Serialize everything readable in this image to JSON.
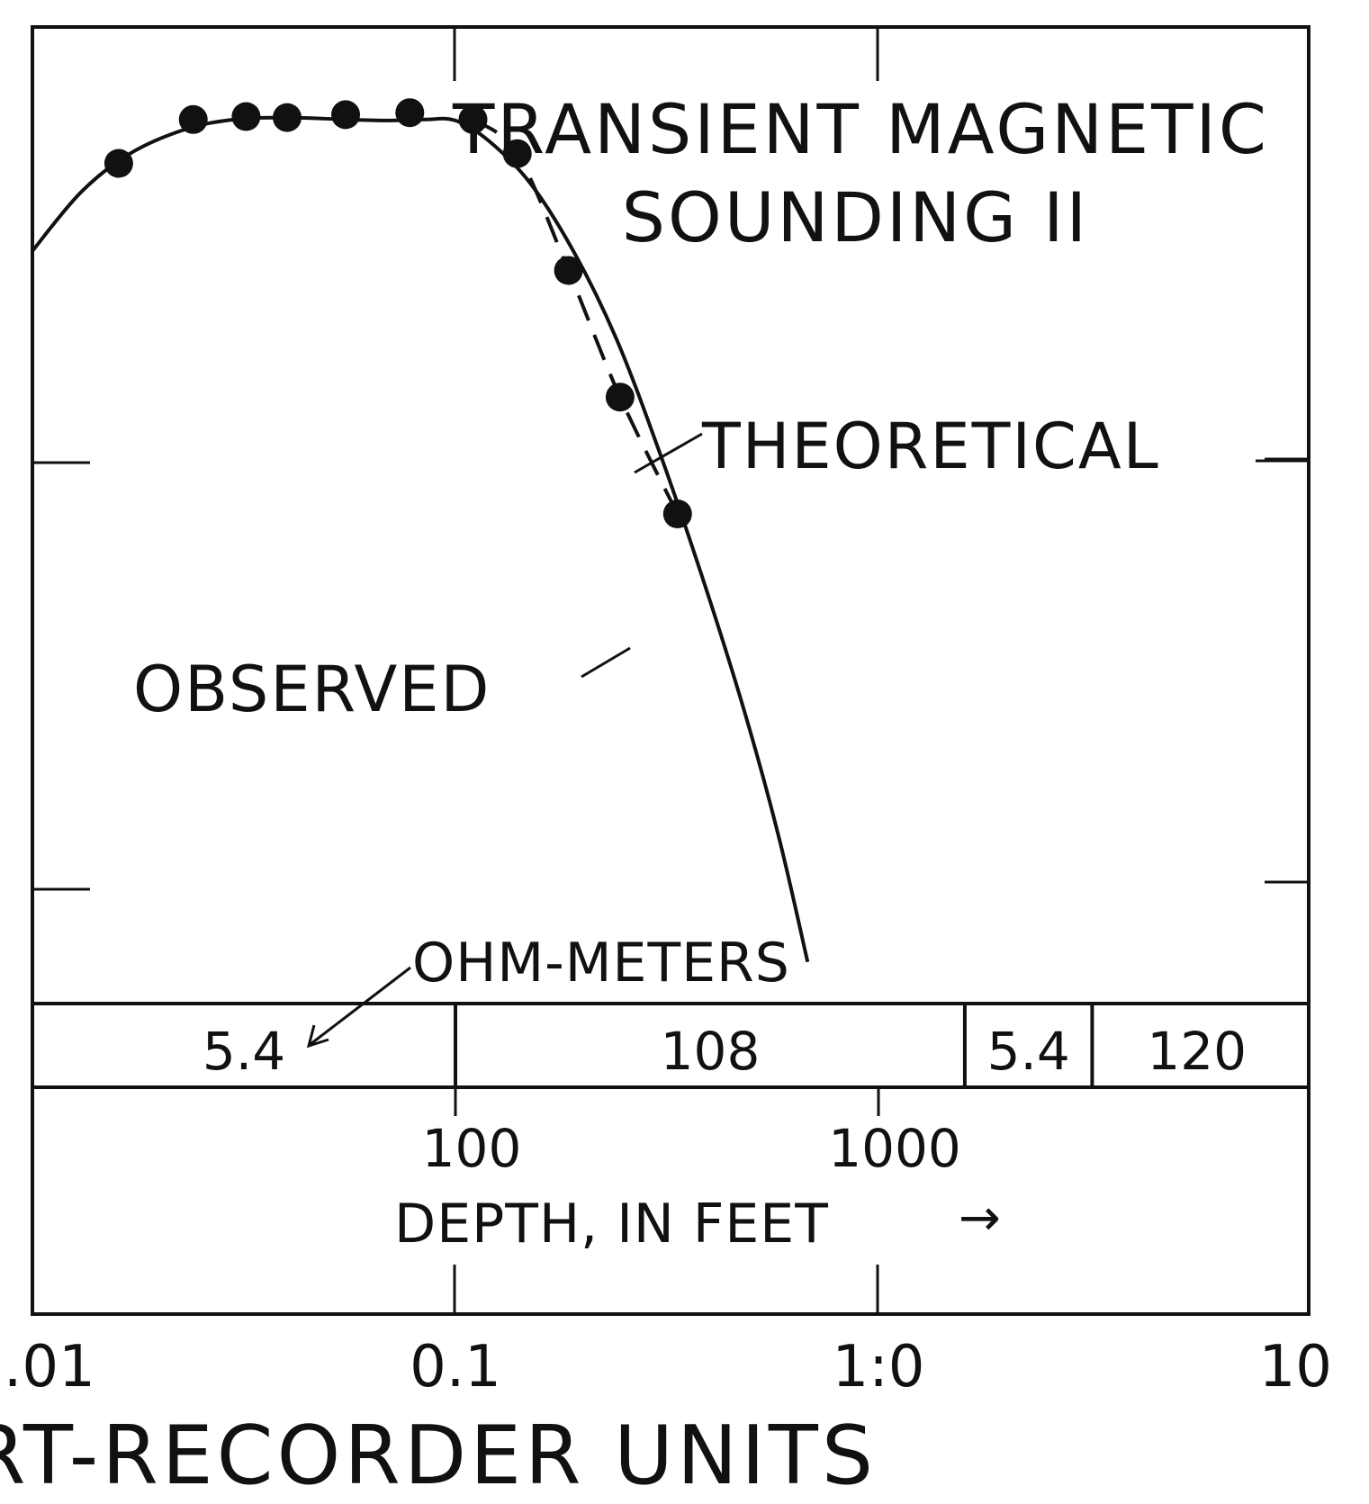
{
  "chart_data": {
    "type": "line",
    "title_lines": [
      "TRANSIENT MAGNETIC",
      "SOUNDING II"
    ],
    "xlabel": "RT-RECORDER UNITS",
    "x_scale": "log",
    "xlim": [
      0.01,
      10
    ],
    "x_tick_labels": [
      ".01",
      "0.1",
      "1:0",
      "10"
    ],
    "series": [
      {
        "name": "THEORETICAL",
        "style": "solid",
        "x": [
          0.01,
          0.013,
          0.017,
          0.023,
          0.03,
          0.04,
          0.055,
          0.07,
          0.085,
          0.1,
          0.12,
          0.15,
          0.19,
          0.24,
          0.3,
          0.38,
          0.48,
          0.58,
          0.68
        ],
        "y": [
          0.23,
          0.17,
          0.13,
          0.105,
          0.095,
          0.093,
          0.095,
          0.096,
          0.095,
          0.096,
          0.117,
          0.16,
          0.23,
          0.32,
          0.43,
          0.56,
          0.7,
          0.83,
          0.96
        ]
      },
      {
        "name": "OBSERVED",
        "style": "dashed-with-markers",
        "x": [
          0.016,
          0.024,
          0.032,
          0.04,
          0.055,
          0.078,
          0.11,
          0.14,
          0.185,
          0.245,
          0.335
        ],
        "y": [
          0.14,
          0.095,
          0.092,
          0.093,
          0.09,
          0.088,
          0.095,
          0.13,
          0.25,
          0.38,
          0.5
        ]
      }
    ],
    "series_labels": [
      "THEORETICAL",
      "OBSERVED"
    ],
    "resistivity_panel": {
      "units_label": "OHM-METERS",
      "layers": [
        {
          "value": "5.4",
          "from_x": 0.01,
          "to_x": 0.1
        },
        {
          "value": "108",
          "from_x": 0.1,
          "to_x": 1.6
        },
        {
          "value": "5.4",
          "from_x": 1.6,
          "to_x": 3.2
        },
        {
          "value": "120",
          "from_x": 3.2,
          "to_x": 10
        }
      ]
    },
    "depth_axis": {
      "label": "DEPTH, IN FEET",
      "arrow": "→",
      "ticks": [
        {
          "label": "100",
          "at_x": 0.1
        },
        {
          "label": "1000",
          "at_x": 1.0
        }
      ]
    },
    "grid": false,
    "legend": "none"
  }
}
